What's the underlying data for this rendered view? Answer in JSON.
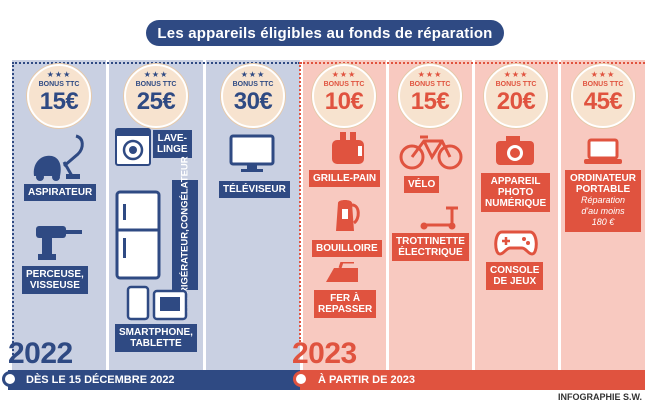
{
  "title": "Les appareils éligibles au fonds de réparation",
  "badge_text": "BONUS TTC",
  "badges": [
    "15€",
    "25€",
    "30€",
    "10€",
    "15€",
    "20€",
    "45€"
  ],
  "labels": {
    "aspirateur": "ASPIRATEUR",
    "perceuse_1": "PERCEUSE,",
    "perceuse_2": "VISSEUSE",
    "lave_1": "LAVE-",
    "lave_2": "LINGE",
    "refrigerateur_1": "RÉFRIGÉRATEUR,",
    "refrigerateur_2": "CONGÉLATEUR",
    "smartphone_1": "SMARTPHONE,",
    "smartphone_2": "TABLETTE",
    "televiseur": "TÉLÉVISEUR",
    "grille_pain": "GRILLE-PAIN",
    "bouilloire": "BOUILLOIRE",
    "fer_1": "FER À",
    "fer_2": "REPASSER",
    "velo": "VÉLO",
    "trottinette_1": "TROTTINETTE",
    "trottinette_2": "ÉLECTRIQUE",
    "appareil_1": "APPAREIL",
    "appareil_2": "PHOTO",
    "appareil_3": "NUMÉRIQUE",
    "console_1": "CONSOLE",
    "console_2": "DE JEUX",
    "ordinateur_1": "ORDINATEUR",
    "ordinateur_2": "PORTABLE",
    "ordinateur_note_1": "Réparation",
    "ordinateur_note_2": "d'au moins",
    "ordinateur_note_3": "180 €"
  },
  "years": {
    "first": "2022",
    "second": "2023"
  },
  "banners": {
    "first": "DÈS LE 15 DÉCEMBRE 2022",
    "second": "À PARTIR DE 2023"
  },
  "credit": "INFOGRAPHIE S.W.",
  "colors": {
    "blue": "#2f4a83",
    "red": "#e0533f",
    "blue_bg": "#c9d0e2",
    "red_bg": "#f8c9c0",
    "badge_bg": "#f7e3cf"
  }
}
